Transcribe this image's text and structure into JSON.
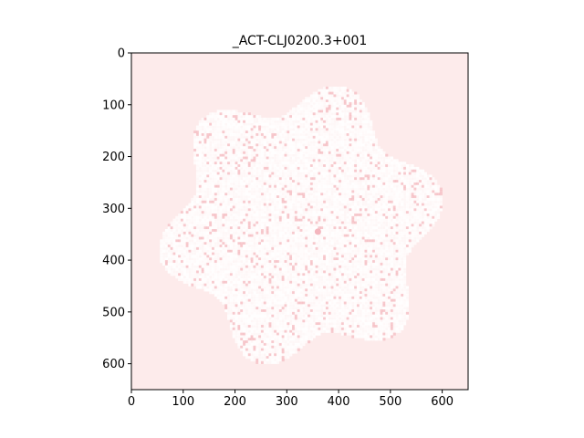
{
  "chart_data": {
    "type": "heatmap",
    "title": "_ACT-CLJ0200.3+001",
    "xlabel": "",
    "ylabel": "",
    "xlim": [
      0,
      650
    ],
    "ylim": [
      650,
      0
    ],
    "x_ticks": [
      0,
      100,
      200,
      300,
      400,
      500,
      600
    ],
    "y_ticks": [
      0,
      100,
      200,
      300,
      400,
      500,
      600
    ],
    "grid": false,
    "background_color": "#fdebeb",
    "noise_color": "#ffffff",
    "speckle_color": "#f2a8b0",
    "source_color": "#f4b6be",
    "exposure_region_center": [
      325,
      330
    ],
    "exposure_region_radius": 280,
    "point_source_position": [
      360,
      345
    ]
  }
}
